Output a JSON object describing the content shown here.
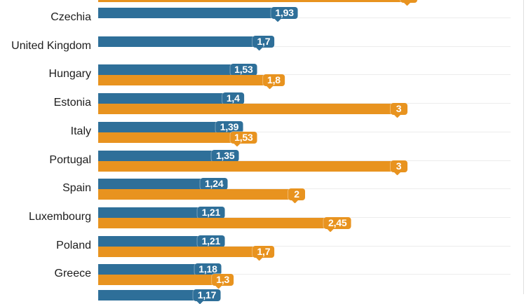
{
  "chart_data": {
    "type": "bar",
    "orientation": "horizontal",
    "title": "",
    "xlabel": "",
    "ylabel": "",
    "xlim": [
      0,
      4.16
    ],
    "grid": true,
    "legend_position": "none visible (chart cropped top and bottom)",
    "colors": {
      "blue": "#2e6f99",
      "orange": "#e8931f",
      "gridline": "#ececec",
      "axis_line": "#e0e0e0",
      "country_text": "#1d1d1d",
      "value_text": "#ffffff"
    },
    "rows": [
      {
        "country": "",
        "clipped": "top",
        "bars": [
          {
            "color": "orange",
            "value": 3.1,
            "label": ""
          }
        ]
      },
      {
        "country": "Czechia",
        "bars": [
          {
            "color": "blue",
            "value": 1.93,
            "label": "1,93"
          }
        ]
      },
      {
        "country": "United Kingdom",
        "bars": [
          {
            "color": "blue",
            "value": 1.7,
            "label": "1,7"
          }
        ]
      },
      {
        "country": "Hungary",
        "bars": [
          {
            "color": "blue",
            "value": 1.53,
            "label": "1,53"
          },
          {
            "color": "orange",
            "value": 1.8,
            "label": "1,8"
          }
        ]
      },
      {
        "country": "Estonia",
        "bars": [
          {
            "color": "blue",
            "value": 1.4,
            "label": "1,4"
          },
          {
            "color": "orange",
            "value": 3,
            "label": "3"
          }
        ]
      },
      {
        "country": "Italy",
        "bars": [
          {
            "color": "blue",
            "value": 1.39,
            "label": "1,39"
          },
          {
            "color": "orange",
            "value": 1.53,
            "label": "1,53"
          }
        ]
      },
      {
        "country": "Portugal",
        "bars": [
          {
            "color": "blue",
            "value": 1.35,
            "label": "1,35"
          },
          {
            "color": "orange",
            "value": 3,
            "label": "3"
          }
        ]
      },
      {
        "country": "Spain",
        "bars": [
          {
            "color": "blue",
            "value": 1.24,
            "label": "1,24"
          },
          {
            "color": "orange",
            "value": 2,
            "label": "2"
          }
        ]
      },
      {
        "country": "Luxembourg",
        "bars": [
          {
            "color": "blue",
            "value": 1.21,
            "label": "1,21"
          },
          {
            "color": "orange",
            "value": 2.45,
            "label": "2,45"
          }
        ]
      },
      {
        "country": "Poland",
        "bars": [
          {
            "color": "blue",
            "value": 1.21,
            "label": "1,21"
          },
          {
            "color": "orange",
            "value": 1.7,
            "label": "1,7"
          }
        ]
      },
      {
        "country": "Greece",
        "bars": [
          {
            "color": "blue",
            "value": 1.18,
            "label": "1,18"
          },
          {
            "color": "orange",
            "value": 1.3,
            "label": "1,3"
          }
        ]
      },
      {
        "country": "",
        "clipped": "bottom",
        "bars": [
          {
            "color": "blue",
            "value": 1.17,
            "label": "1,17"
          }
        ]
      }
    ]
  }
}
